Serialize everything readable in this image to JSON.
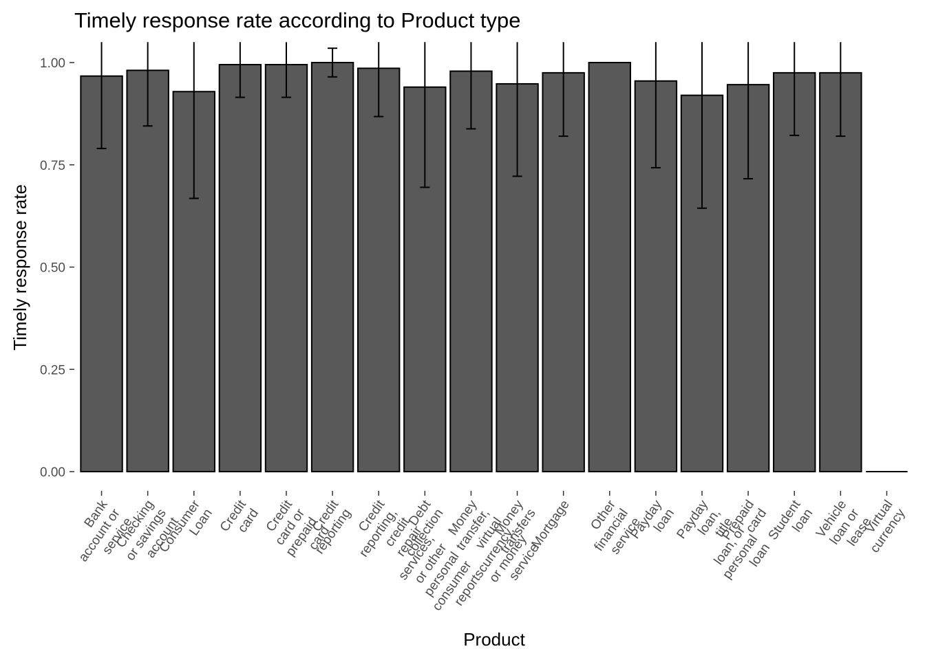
{
  "chart_data": {
    "type": "bar",
    "title": "Timely response rate according to Product type",
    "xlabel": "Product",
    "ylabel": "Timely response rate",
    "ylim": [
      0,
      1.05
    ],
    "yticks": [
      0.0,
      0.25,
      0.5,
      0.75,
      1.0
    ],
    "ytick_labels": [
      "0.00",
      "0.25",
      "0.50",
      "0.75",
      "1.00"
    ],
    "grid": false,
    "legend": "none",
    "bar_color": "#595959",
    "bar_edge_color": "#000000",
    "categories": [
      [
        "Bank",
        "account or",
        "service"
      ],
      [
        "Checking",
        "or savings",
        "account"
      ],
      [
        "Consumer",
        "Loan"
      ],
      [
        "Credit",
        "card"
      ],
      [
        "Credit",
        "card or",
        "prepaid",
        "card"
      ],
      [
        "Credit",
        "reporting"
      ],
      [
        "Credit",
        "reporting,",
        "credit",
        "repair",
        "services,",
        "or other",
        "personal",
        "consumer",
        "reports"
      ],
      [
        "Debt",
        "collection"
      ],
      [
        "Money",
        "transfer,",
        "virtual",
        "currency,",
        "or money",
        "service"
      ],
      [
        "Money",
        "transfers"
      ],
      [
        "Mortgage"
      ],
      [
        "Other",
        "financial",
        "service"
      ],
      [
        "Payday",
        "loan"
      ],
      [
        "Payday",
        "loan,",
        "title",
        "loan, or",
        "personal",
        "loan"
      ],
      [
        "Prepaid",
        "card"
      ],
      [
        "Student",
        "loan"
      ],
      [
        "Vehicle",
        "loan or",
        "lease"
      ],
      [
        "Virtual",
        "currency"
      ]
    ],
    "values": [
      0.967,
      0.981,
      0.929,
      0.995,
      0.995,
      1.0,
      0.986,
      0.94,
      0.979,
      0.948,
      0.975,
      1.0,
      0.955,
      0.92,
      0.946,
      0.975,
      0.975,
      0.0
    ],
    "error_lower": [
      0.79,
      0.845,
      0.668,
      0.915,
      0.915,
      0.965,
      0.868,
      0.695,
      0.838,
      0.722,
      0.82,
      null,
      0.743,
      0.644,
      0.716,
      0.822,
      0.82,
      null
    ],
    "error_upper": [
      1.05,
      1.05,
      1.05,
      1.05,
      1.05,
      1.035,
      1.05,
      1.05,
      1.05,
      1.05,
      1.05,
      null,
      1.05,
      1.05,
      1.05,
      1.05,
      1.05,
      null
    ]
  }
}
